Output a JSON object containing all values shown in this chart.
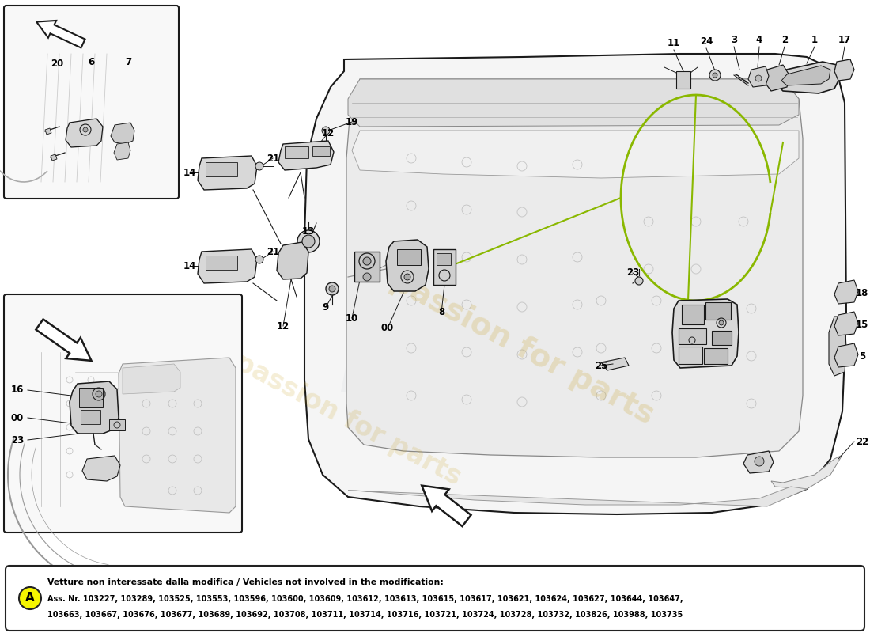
{
  "bg_color": "#ffffff",
  "watermark_text": "passion for parts",
  "watermark_color": "#c8a020",
  "footer_circle_color": "#f5f500",
  "footer_circle_letter": "A",
  "footer_title": "Vetture non interessate dalla modifica / Vehicles not involved in the modification:",
  "footer_line1": "Ass. Nr. 103227, 103289, 103525, 103553, 103596, 103600, 103609, 103612, 103613, 103615, 103617, 103621, 103624, 103627, 103644, 103647,",
  "footer_line2": "103663, 103667, 103676, 103677, 103689, 103692, 103708, 103711, 103714, 103716, 103721, 103724, 103728, 103732, 103826, 103988, 103735"
}
